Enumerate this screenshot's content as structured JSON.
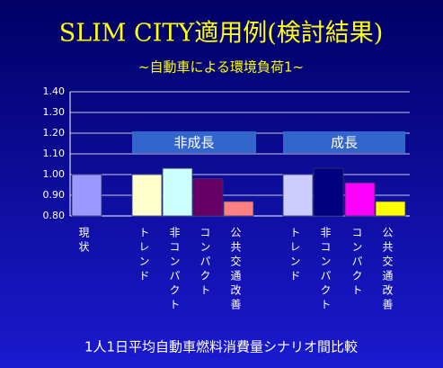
{
  "chart_data": {
    "type": "bar",
    "title": "SLIM CITY適用例(検討結果)",
    "subtitle": "~自動車による環境負荷1~",
    "x_label": "1人1日平均自動車燃料消費量シナリオ間比較",
    "annotations": [
      "非成長",
      "成長"
    ],
    "categories": [
      "現状",
      "トレンド",
      "非コンパクト",
      "コンパクト",
      "公共交通改善",
      "トレンド",
      "非コンパクト",
      "コンパクト",
      "公共交通改善"
    ],
    "values": [
      1.0,
      1.0,
      1.03,
      0.98,
      0.87,
      1.0,
      1.03,
      0.96,
      0.87
    ],
    "colors": [
      "#9999ff",
      "#ffffcc",
      "#ccffff",
      "#660066",
      "#ff8080",
      "#ccccff",
      "#000080",
      "#ff00ff",
      "#ffff00"
    ],
    "ylim": [
      0.8,
      1.4
    ],
    "yticks": [
      {
        "value": 0.8,
        "label": "0.80"
      },
      {
        "value": 0.9,
        "label": "0.90"
      },
      {
        "value": 1.0,
        "label": "1.00"
      },
      {
        "value": 1.1,
        "label": "1.10"
      },
      {
        "value": 1.2,
        "label": "1.20"
      },
      {
        "value": 1.3,
        "label": "1.30"
      },
      {
        "value": 1.4,
        "label": "1.40"
      }
    ],
    "grid": true
  }
}
